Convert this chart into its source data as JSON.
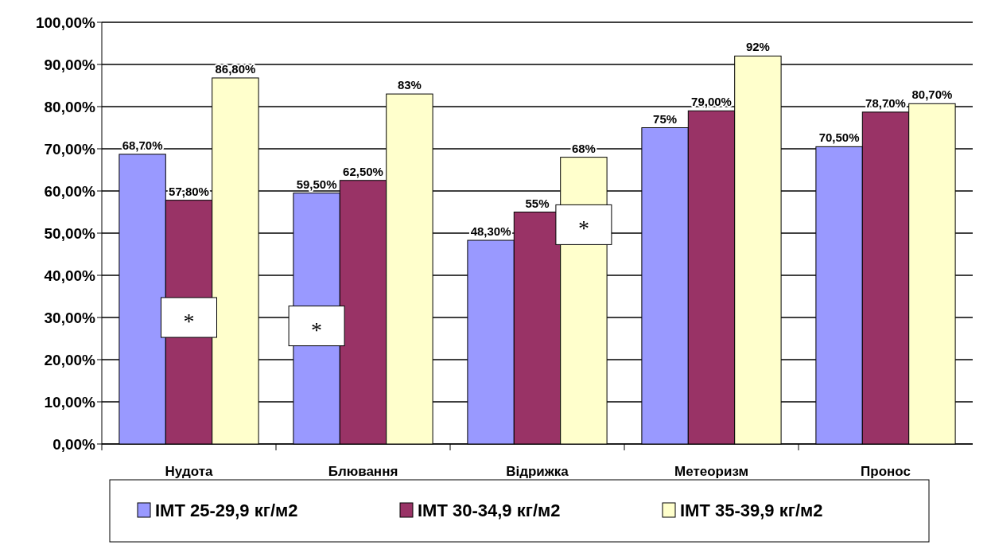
{
  "chart_data": {
    "type": "bar",
    "categories": [
      "Нудота",
      "Блювання",
      "Відрижка",
      "Метеоризм",
      "Пронос"
    ],
    "series": [
      {
        "name": "ІМТ 25-29,9 кг/м2",
        "color": "#9999ff",
        "values": [
          68.7,
          59.5,
          48.3,
          75,
          70.5
        ],
        "value_labels": [
          "68,70%",
          "59,50%",
          "48,30%",
          "75%",
          "70,50%"
        ]
      },
      {
        "name": "ІМТ 30-34,9 кг/м2",
        "color": "#993366",
        "values": [
          57.8,
          62.5,
          55,
          79,
          78.7
        ],
        "value_labels": [
          "57,80%",
          "62,50%",
          "55%",
          "79,00%",
          "78,70%"
        ]
      },
      {
        "name": "ІМТ 35-39,9 кг/м2",
        "color": "#ffffcc",
        "values": [
          86.8,
          83,
          68,
          92,
          80.7
        ],
        "value_labels": [
          "86,80%",
          "83%",
          "68%",
          "92%",
          "80,70%"
        ]
      }
    ],
    "ylim": [
      0,
      100
    ],
    "yticks": [
      {
        "value": 0,
        "label": "0,00%"
      },
      {
        "value": 10,
        "label": "10,00%"
      },
      {
        "value": 20,
        "label": "20,00%"
      },
      {
        "value": 30,
        "label": "30,00%"
      },
      {
        "value": 40,
        "label": "40,00%"
      },
      {
        "value": 50,
        "label": "50,00%"
      },
      {
        "value": 60,
        "label": "60,00%"
      },
      {
        "value": 70,
        "label": "70,00%"
      },
      {
        "value": 80,
        "label": "80,00%"
      },
      {
        "value": 90,
        "label": "90,00%"
      },
      {
        "value": 100,
        "label": "100,00%"
      }
    ],
    "grid": "y",
    "legend": "bottom",
    "annotations": [
      "*",
      "*",
      "*"
    ]
  }
}
